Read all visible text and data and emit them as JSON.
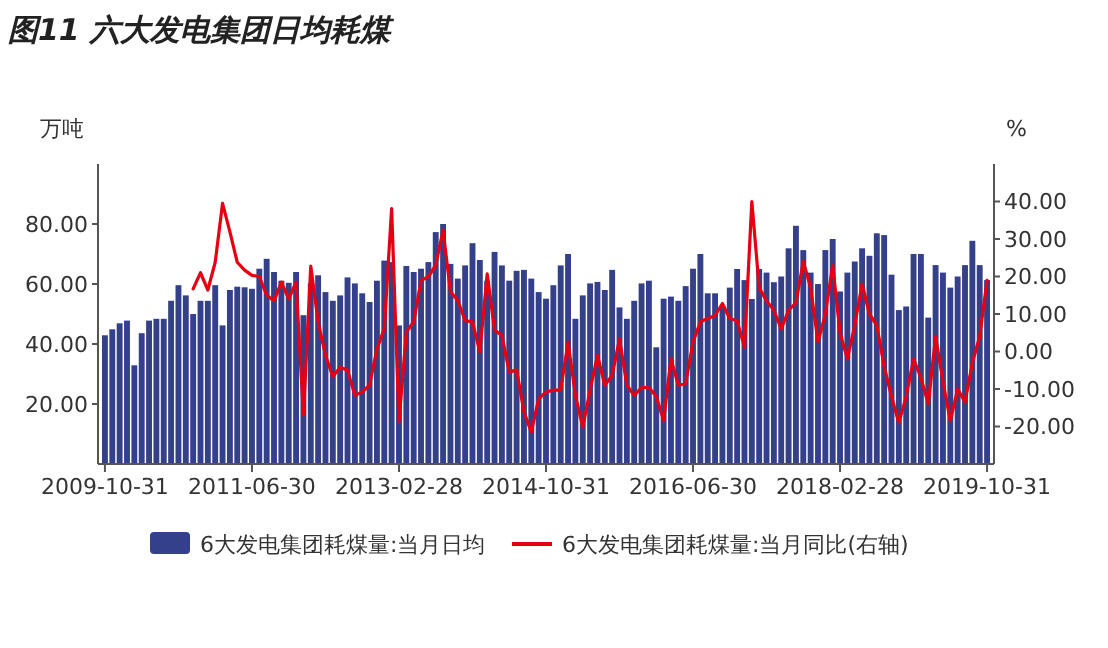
{
  "chart_data": {
    "type": "bar",
    "title": "图11 六大发电集团日均耗煤",
    "ylabel": "万吨",
    "y2label": "%",
    "categories": [
      "2009-10-31",
      null,
      null,
      null,
      null,
      null,
      null,
      null,
      null,
      null,
      null,
      null,
      null,
      null,
      null,
      null,
      null,
      null,
      null,
      null,
      "2011-06-30",
      null,
      null,
      null,
      null,
      null,
      null,
      null,
      null,
      null,
      null,
      null,
      null,
      null,
      null,
      null,
      null,
      null,
      null,
      null,
      "2013-02-28",
      null,
      null,
      null,
      null,
      null,
      null,
      null,
      null,
      null,
      null,
      null,
      null,
      null,
      null,
      null,
      null,
      null,
      null,
      null,
      "2014-10-31",
      null,
      null,
      null,
      null,
      null,
      null,
      null,
      null,
      null,
      null,
      null,
      null,
      null,
      null,
      null,
      null,
      null,
      null,
      null,
      "2016-06-30",
      null,
      null,
      null,
      null,
      null,
      null,
      null,
      null,
      null,
      null,
      null,
      null,
      null,
      null,
      null,
      null,
      null,
      null,
      null,
      "2018-02-28",
      null,
      null,
      null,
      null,
      null,
      null,
      null,
      null,
      null,
      null,
      null,
      null,
      null,
      null,
      null,
      null,
      null,
      null,
      null,
      "2019-10-31"
    ],
    "series": [
      {
        "name": "6大发电集团耗煤量:当月日均",
        "color": "#34418a",
        "values": [
          42.9,
          44.9,
          46.9,
          47.8,
          32.9,
          43.6,
          47.8,
          48.4,
          48.4,
          54.4,
          59.6,
          56.2,
          50,
          54.4,
          54.4,
          59.6,
          46.2,
          58,
          59.1,
          58.9,
          58.4,
          65.1,
          68.4,
          64,
          61.1,
          60.4,
          64,
          49.6,
          60.2,
          62.9,
          57.3,
          54.4,
          56.2,
          62.2,
          60.2,
          56.9,
          54,
          61.1,
          67.8,
          67.3,
          46.2,
          66,
          64,
          65.1,
          67.3,
          77.3,
          80,
          66.7,
          61.8,
          66.2,
          73.6,
          68,
          61.1,
          70.7,
          66.2,
          61.1,
          64.4,
          64.7,
          61.8,
          57.3,
          55.1,
          59.6,
          66.2,
          70,
          48.4,
          56.2,
          60.2,
          60.7,
          58,
          64.7,
          52.2,
          48.4,
          54.4,
          60.2,
          61.1,
          38.9,
          55.1,
          55.8,
          54.4,
          59.3,
          65.1,
          70,
          56.9,
          56.9,
          52.5,
          58.8,
          65,
          61.3,
          55,
          65,
          63.8,
          60.6,
          62.5,
          71.9,
          79.4,
          71.3,
          63.8,
          60,
          71.3,
          75,
          57.5,
          63.8,
          67.5,
          71.9,
          69.4,
          76.9,
          76.3,
          63.1,
          51.3,
          52.5,
          70,
          70,
          48.8,
          66.3,
          63.8,
          58.8,
          62.5,
          66.3,
          74.4,
          66.3,
          61.3
        ]
      },
      {
        "name": "6大发电集团耗煤量:当月同比(右轴)",
        "type": "line",
        "axis": "y2",
        "color": "#e60012",
        "values": [
          null,
          null,
          null,
          null,
          null,
          null,
          null,
          null,
          null,
          null,
          null,
          null,
          16.7,
          21,
          16.4,
          23.8,
          39.5,
          31.9,
          23.8,
          21.7,
          20.3,
          20,
          15,
          13.5,
          18.5,
          14,
          18.5,
          -17,
          22.8,
          7.9,
          -1,
          -6.7,
          -4.2,
          -5,
          -11.7,
          -10.8,
          -9,
          0.7,
          6.1,
          38.1,
          -18.8,
          5.2,
          7.9,
          18.9,
          20,
          23,
          32.4,
          15.9,
          13.6,
          8.2,
          7.9,
          -0.1,
          20.7,
          5.7,
          4.3,
          -5.5,
          -4.9,
          -16.1,
          -21.5,
          -12.6,
          -10.8,
          -10.3,
          -10.3,
          2.5,
          -11.7,
          -20.2,
          -10.3,
          -1,
          -9,
          -6.4,
          3.4,
          -9,
          -11.7,
          -9.6,
          -9.6,
          -12,
          -18.4,
          -1.9,
          -9,
          -8.5,
          2.5,
          7.9,
          8.8,
          9.6,
          12.8,
          8.8,
          8.2,
          1.1,
          40,
          17,
          13.5,
          11,
          6,
          11,
          13,
          24,
          17,
          2.5,
          10,
          23,
          5,
          -2,
          7,
          18,
          10,
          7,
          -4,
          -12,
          -19,
          -12,
          -2,
          -7,
          -14,
          4,
          -8,
          -18.5,
          -10,
          -13.5,
          -3,
          4,
          19
        ]
      }
    ],
    "ylim": [
      0,
      100
    ],
    "yticks": [
      {
        "value": 20,
        "label": "20.00"
      },
      {
        "value": 40,
        "label": "40.00"
      },
      {
        "value": 60,
        "label": "60.00"
      },
      {
        "value": 80,
        "label": "80.00"
      }
    ],
    "y2lim": [
      -30,
      50
    ],
    "y2ticks": [
      {
        "value": -20,
        "label": "-20.00"
      },
      {
        "value": -10,
        "label": "-10.00"
      },
      {
        "value": 0,
        "label": "0.00"
      },
      {
        "value": 10,
        "label": "10.00"
      },
      {
        "value": 20,
        "label": "20.00"
      },
      {
        "value": 30,
        "label": "30.00"
      },
      {
        "value": 40,
        "label": "40.00"
      }
    ],
    "legend": "bottom"
  }
}
